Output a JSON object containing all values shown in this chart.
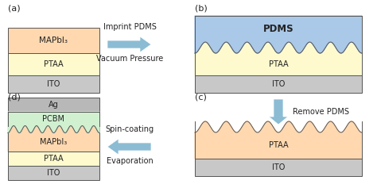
{
  "fig_width": 4.74,
  "fig_height": 2.37,
  "dpi": 100,
  "background": "#ffffff",
  "colors": {
    "ITO": "#c8c8c8",
    "PTAA": "#fffacd",
    "MAPbI3": "#ffd8b0",
    "PCBM": "#d0f0d0",
    "Ag": "#b8b8b8",
    "PDMS": "#aac8e8",
    "border": "#555555",
    "arrow": "#8bbcd4",
    "text": "#222222"
  },
  "panel_labels": [
    "(a)",
    "(b)",
    "(c)",
    "(d)"
  ],
  "arrow_ab": [
    "Imprint PDMS",
    "Vacuum Pressure"
  ],
  "arrow_bc": "Remove PDMS",
  "arrow_cd": [
    "Spin-coating",
    "Evaporation"
  ],
  "layer_labels": {
    "ITO": "ITO",
    "PTAA": "PTAA",
    "MAPbI3": "MAPbI₃",
    "PCBM": "PCBM",
    "Ag": "Ag",
    "PDMS": "PDMS"
  }
}
